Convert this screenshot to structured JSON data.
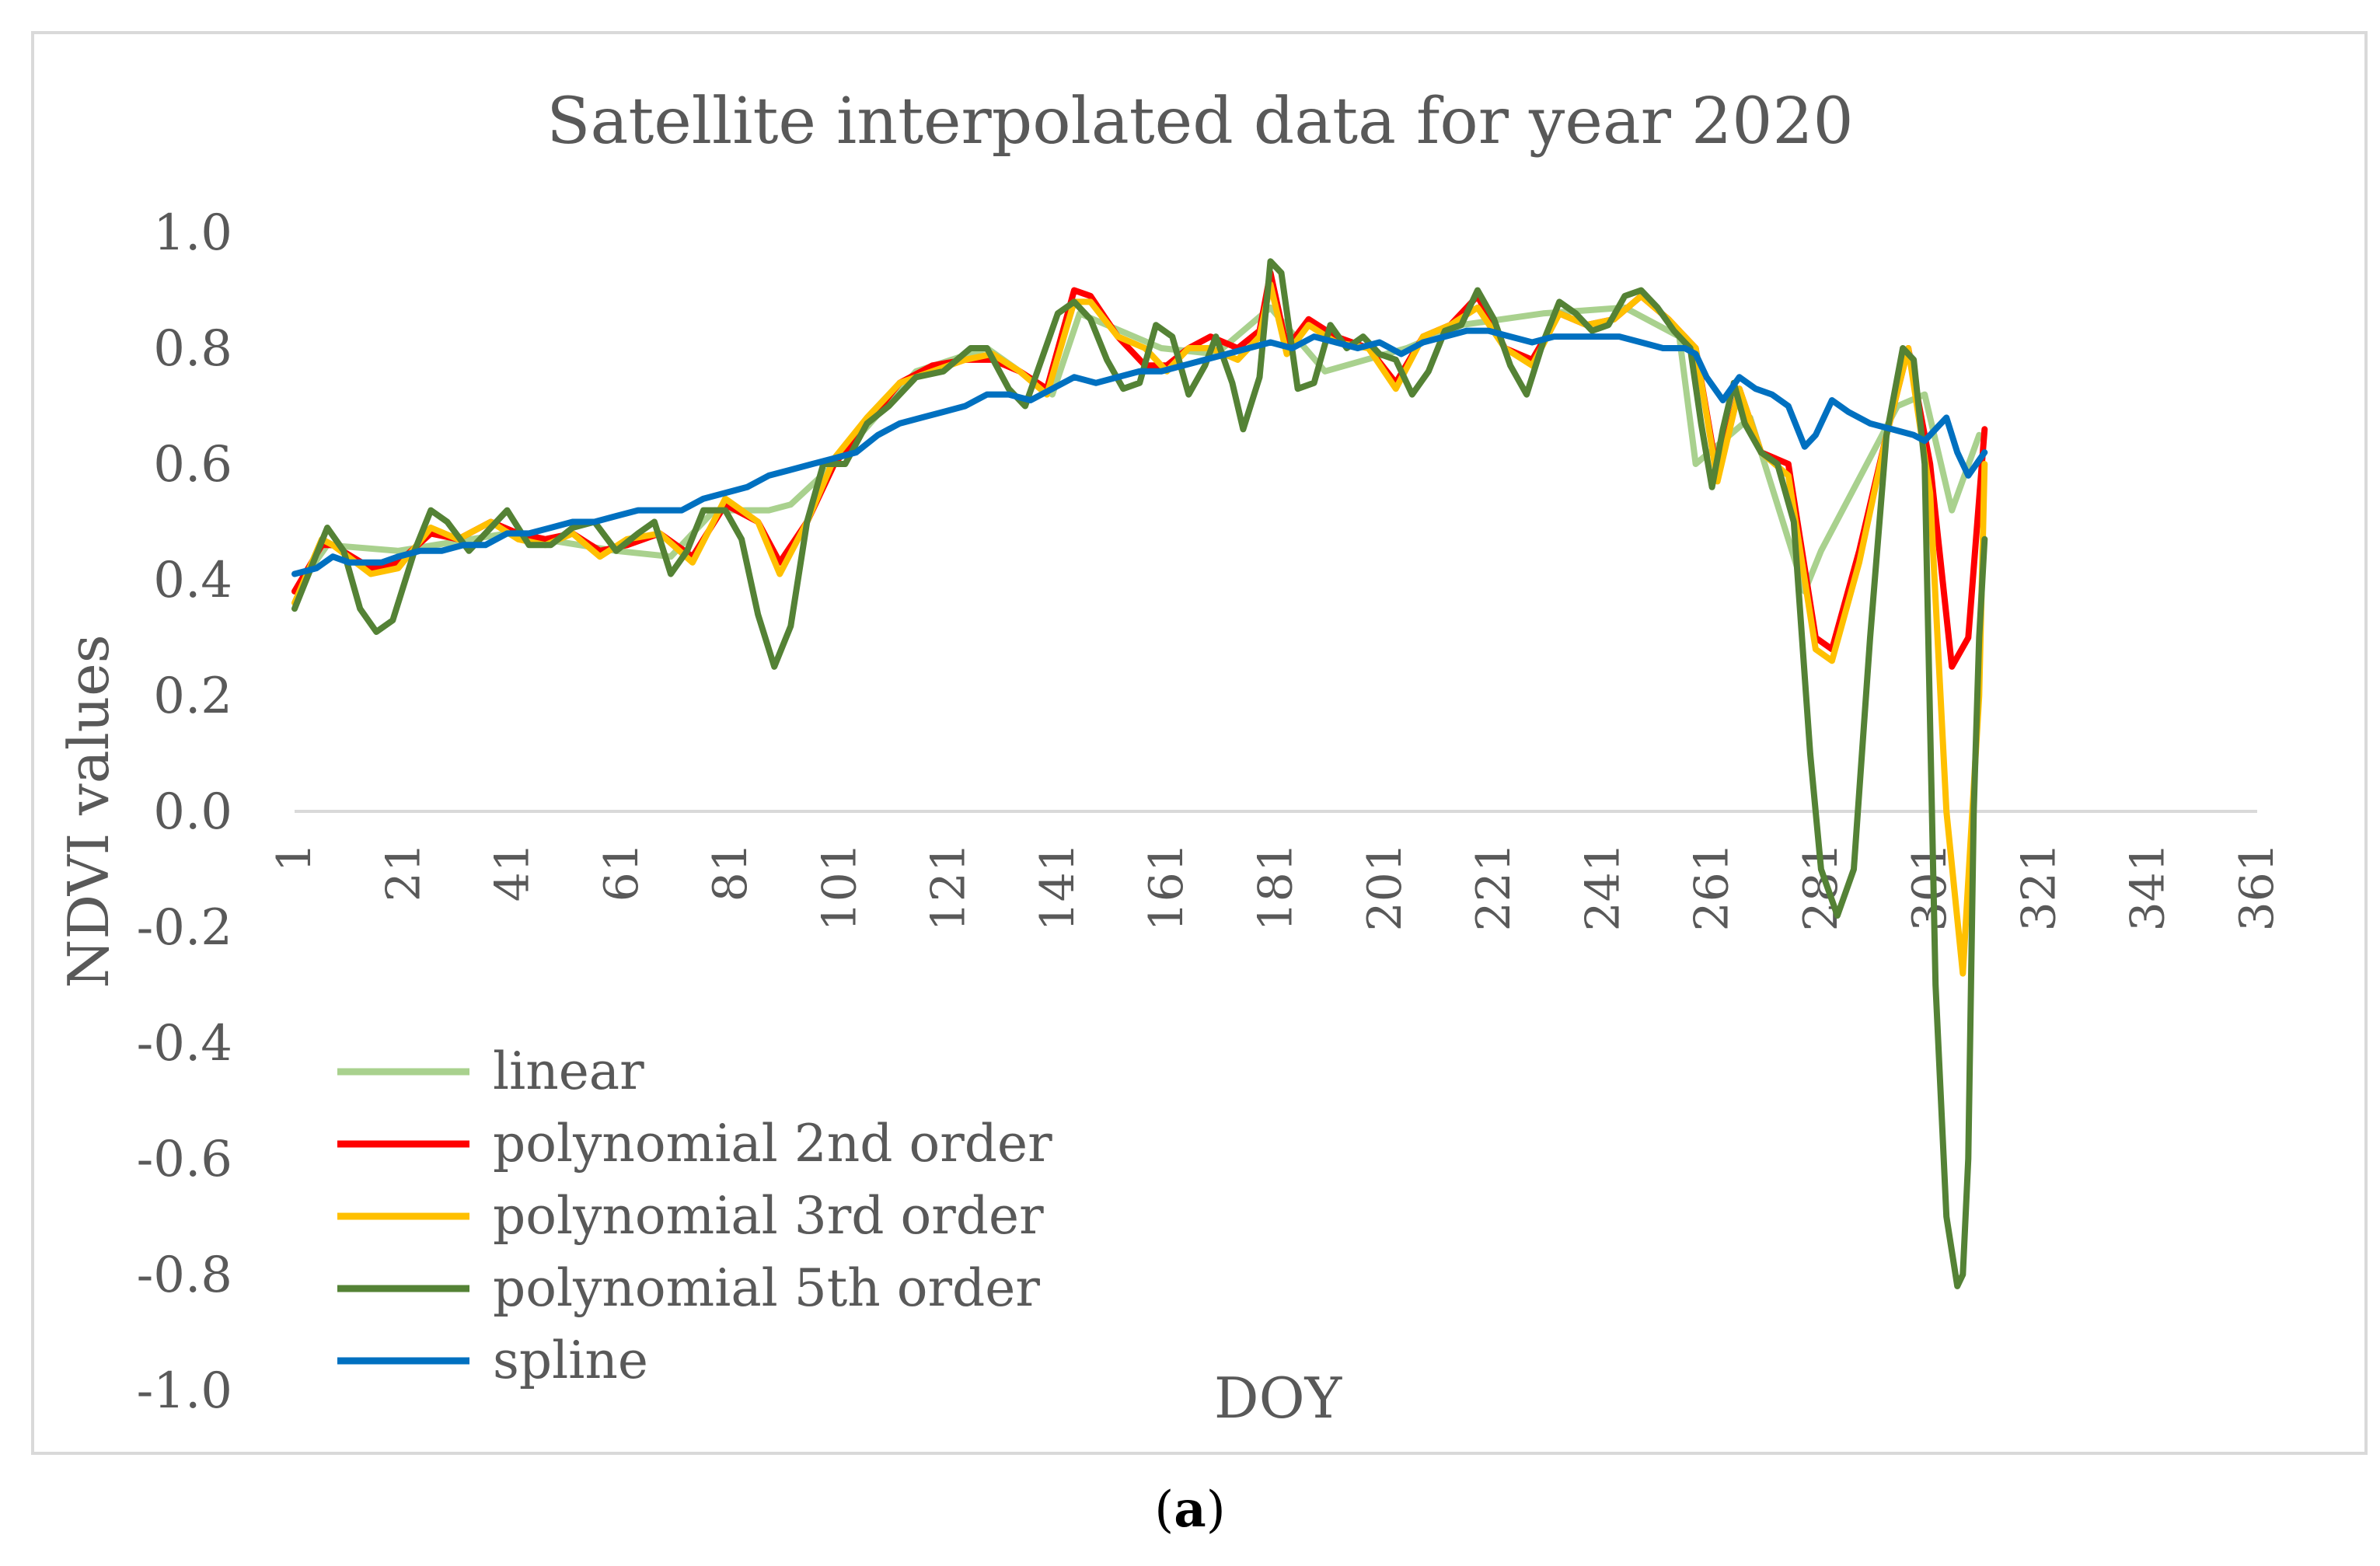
{
  "chart_data": {
    "type": "line",
    "title": "Satellite interpolated data for year 2020",
    "xlabel": "DOY",
    "ylabel": "NDVI values",
    "xlim": [
      1,
      361
    ],
    "ylim": [
      -1.0,
      1.0
    ],
    "y_ticks": [
      "-1.0",
      "-0.8",
      "-0.6",
      "-0.4",
      "-0.2",
      "0.0",
      "0.2",
      "0.4",
      "0.6",
      "0.8",
      "1.0"
    ],
    "x_ticks": [
      "1",
      "21",
      "41",
      "61",
      "81",
      "101",
      "121",
      "141",
      "161",
      "181",
      "201",
      "221",
      "241",
      "261",
      "281",
      "301",
      "321",
      "341",
      "361"
    ],
    "grid": false,
    "legend_position": "bottom-left",
    "series": [
      {
        "name": "linear",
        "color": "#a9d18e",
        "x": [
          1,
          7,
          20,
          40,
          60,
          70,
          78,
          88,
          92,
          100,
          115,
          128,
          140,
          145,
          160,
          170,
          180,
          190,
          205,
          215,
          230,
          245,
          255,
          258,
          268,
          278,
          281,
          295,
          300,
          305,
          310
        ],
        "y": [
          0.38,
          0.46,
          0.45,
          0.48,
          0.45,
          0.44,
          0.52,
          0.52,
          0.53,
          0.6,
          0.76,
          0.8,
          0.72,
          0.86,
          0.8,
          0.79,
          0.87,
          0.76,
          0.8,
          0.84,
          0.86,
          0.87,
          0.82,
          0.6,
          0.68,
          0.38,
          0.45,
          0.7,
          0.72,
          0.52,
          0.65
        ]
      },
      {
        "name": "polynomial 2nd order",
        "color": "#ff0000",
        "x": [
          1,
          6,
          8,
          15,
          20,
          26,
          31,
          37,
          42,
          47,
          52,
          57,
          62,
          68,
          74,
          80,
          86,
          90,
          95,
          100,
          106,
          112,
          118,
          124,
          129,
          134,
          139,
          144,
          147,
          152,
          157,
          161,
          165,
          169,
          174,
          178,
          180,
          183,
          187,
          192,
          198,
          203,
          208,
          213,
          218,
          223,
          228,
          233,
          238,
          243,
          248,
          253,
          258,
          262,
          266,
          270,
          275,
          280,
          283,
          288,
          293,
          297,
          301,
          305,
          308,
          311
        ],
        "y": [
          0.38,
          0.46,
          0.46,
          0.42,
          0.43,
          0.48,
          0.47,
          0.5,
          0.48,
          0.47,
          0.48,
          0.45,
          0.46,
          0.48,
          0.44,
          0.53,
          0.5,
          0.43,
          0.5,
          0.6,
          0.67,
          0.74,
          0.77,
          0.78,
          0.78,
          0.76,
          0.73,
          0.9,
          0.89,
          0.82,
          0.77,
          0.77,
          0.8,
          0.82,
          0.8,
          0.83,
          0.93,
          0.8,
          0.85,
          0.82,
          0.8,
          0.74,
          0.82,
          0.84,
          0.89,
          0.8,
          0.78,
          0.86,
          0.84,
          0.85,
          0.89,
          0.85,
          0.8,
          0.58,
          0.73,
          0.62,
          0.6,
          0.3,
          0.28,
          0.45,
          0.65,
          0.8,
          0.6,
          0.25,
          0.3,
          0.66
        ]
      },
      {
        "name": "polynomial 3rd order",
        "color": "#ffc000",
        "x": [
          1,
          6,
          8,
          15,
          20,
          26,
          31,
          37,
          42,
          47,
          52,
          57,
          62,
          68,
          74,
          80,
          86,
          90,
          95,
          100,
          106,
          112,
          118,
          124,
          129,
          134,
          139,
          144,
          147,
          152,
          157,
          161,
          165,
          169,
          174,
          178,
          180,
          183,
          187,
          192,
          198,
          203,
          208,
          213,
          218,
          223,
          228,
          233,
          238,
          243,
          248,
          253,
          258,
          262,
          266,
          270,
          275,
          280,
          283,
          288,
          293,
          297,
          301,
          304,
          307,
          310,
          311
        ],
        "y": [
          0.36,
          0.47,
          0.46,
          0.41,
          0.42,
          0.49,
          0.47,
          0.5,
          0.47,
          0.46,
          0.48,
          0.44,
          0.47,
          0.48,
          0.43,
          0.54,
          0.5,
          0.41,
          0.5,
          0.61,
          0.68,
          0.74,
          0.76,
          0.78,
          0.79,
          0.76,
          0.72,
          0.88,
          0.88,
          0.82,
          0.8,
          0.76,
          0.8,
          0.8,
          0.78,
          0.82,
          0.91,
          0.79,
          0.84,
          0.81,
          0.8,
          0.73,
          0.82,
          0.84,
          0.87,
          0.8,
          0.77,
          0.86,
          0.84,
          0.85,
          0.89,
          0.85,
          0.8,
          0.57,
          0.73,
          0.62,
          0.58,
          0.28,
          0.26,
          0.43,
          0.65,
          0.8,
          0.55,
          0.0,
          -0.28,
          0.2,
          0.6
        ]
      },
      {
        "name": "polynomial 5th order",
        "color": "#548235",
        "x": [
          1,
          4,
          7,
          10,
          13,
          16,
          19,
          23,
          26,
          29,
          33,
          36,
          40,
          44,
          48,
          52,
          56,
          60,
          64,
          67,
          70,
          73,
          76,
          80,
          83,
          86,
          89,
          92,
          95,
          98,
          102,
          106,
          110,
          115,
          120,
          125,
          128,
          132,
          135,
          138,
          141,
          144,
          147,
          150,
          153,
          156,
          159,
          162,
          165,
          168,
          170,
          173,
          175,
          178,
          180,
          182,
          185,
          188,
          191,
          194,
          197,
          200,
          203,
          206,
          209,
          212,
          215,
          218,
          221,
          224,
          227,
          230,
          233,
          236,
          239,
          242,
          245,
          248,
          251,
          254,
          257,
          259,
          261,
          263,
          265,
          267,
          270,
          273,
          276,
          279,
          281,
          284,
          287,
          290,
          293,
          296,
          298,
          300,
          302,
          304,
          306,
          307,
          308,
          309,
          310,
          311
        ],
        "y": [
          0.35,
          0.42,
          0.49,
          0.45,
          0.35,
          0.31,
          0.33,
          0.45,
          0.52,
          0.5,
          0.45,
          0.48,
          0.52,
          0.46,
          0.46,
          0.49,
          0.5,
          0.45,
          0.48,
          0.5,
          0.41,
          0.45,
          0.52,
          0.52,
          0.47,
          0.34,
          0.25,
          0.32,
          0.5,
          0.6,
          0.6,
          0.67,
          0.7,
          0.75,
          0.76,
          0.8,
          0.8,
          0.73,
          0.7,
          0.78,
          0.86,
          0.88,
          0.85,
          0.78,
          0.73,
          0.74,
          0.84,
          0.82,
          0.72,
          0.77,
          0.82,
          0.74,
          0.66,
          0.75,
          0.95,
          0.93,
          0.73,
          0.74,
          0.84,
          0.8,
          0.82,
          0.79,
          0.78,
          0.72,
          0.76,
          0.83,
          0.84,
          0.9,
          0.85,
          0.77,
          0.72,
          0.81,
          0.88,
          0.86,
          0.83,
          0.84,
          0.89,
          0.9,
          0.87,
          0.83,
          0.8,
          0.67,
          0.56,
          0.66,
          0.74,
          0.67,
          0.62,
          0.6,
          0.5,
          0.1,
          -0.1,
          -0.18,
          -0.1,
          0.3,
          0.65,
          0.8,
          0.78,
          0.6,
          -0.3,
          -0.7,
          -0.82,
          -0.8,
          -0.6,
          0.0,
          0.3,
          0.47
        ]
      },
      {
        "name": "spline",
        "color": "#0070c0",
        "x": [
          1,
          5,
          8,
          11,
          14,
          17,
          20,
          24,
          28,
          32,
          36,
          40,
          44,
          48,
          52,
          56,
          60,
          64,
          68,
          72,
          76,
          80,
          84,
          88,
          92,
          96,
          100,
          104,
          108,
          112,
          116,
          120,
          124,
          128,
          132,
          136,
          140,
          144,
          148,
          152,
          156,
          160,
          164,
          168,
          172,
          176,
          180,
          184,
          188,
          192,
          196,
          200,
          204,
          208,
          212,
          216,
          220,
          224,
          228,
          232,
          236,
          240,
          244,
          248,
          252,
          256,
          258,
          260,
          263,
          266,
          269,
          272,
          275,
          278,
          280,
          283,
          286,
          290,
          294,
          298,
          300,
          302,
          304,
          306,
          308,
          311
        ],
        "y": [
          0.41,
          0.42,
          0.44,
          0.43,
          0.43,
          0.43,
          0.44,
          0.45,
          0.45,
          0.46,
          0.46,
          0.48,
          0.48,
          0.49,
          0.5,
          0.5,
          0.51,
          0.52,
          0.52,
          0.52,
          0.54,
          0.55,
          0.56,
          0.58,
          0.59,
          0.6,
          0.61,
          0.62,
          0.65,
          0.67,
          0.68,
          0.69,
          0.7,
          0.72,
          0.72,
          0.71,
          0.73,
          0.75,
          0.74,
          0.75,
          0.76,
          0.76,
          0.77,
          0.78,
          0.79,
          0.8,
          0.81,
          0.8,
          0.82,
          0.81,
          0.8,
          0.81,
          0.79,
          0.81,
          0.82,
          0.83,
          0.83,
          0.82,
          0.81,
          0.82,
          0.82,
          0.82,
          0.82,
          0.81,
          0.8,
          0.8,
          0.79,
          0.75,
          0.71,
          0.75,
          0.73,
          0.72,
          0.7,
          0.63,
          0.65,
          0.71,
          0.69,
          0.67,
          0.66,
          0.65,
          0.64,
          0.66,
          0.68,
          0.62,
          0.58,
          0.62
        ]
      }
    ]
  },
  "caption": {
    "open": "(",
    "letter": "a",
    "close": ")"
  }
}
